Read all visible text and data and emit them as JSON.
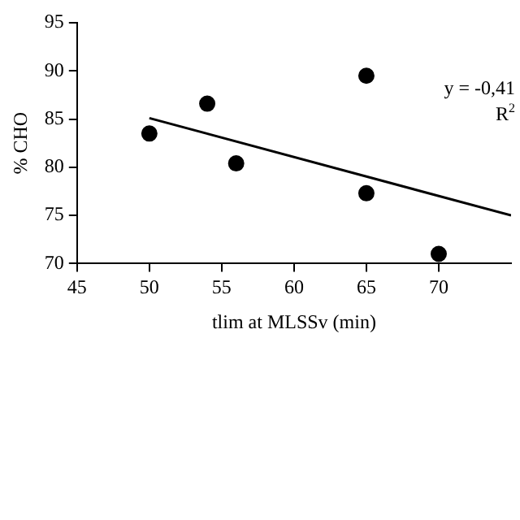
{
  "chart_data": {
    "type": "scatter",
    "xlabel": "tlim at MLSSv (min)",
    "ylabel": "% CHO",
    "xlim": [
      45,
      75
    ],
    "xticks": [
      45,
      50,
      55,
      60,
      65,
      70
    ],
    "ylim": [
      70,
      95
    ],
    "yticks": [
      70,
      75,
      80,
      85,
      90,
      95
    ],
    "grid": false,
    "legend": false,
    "marker": "circle",
    "annotations": [
      "y = -0,41",
      "R$^{2}$"
    ],
    "series": [
      {
        "type": "scatter",
        "color": "#000000",
        "x": [
          50,
          54,
          56,
          65,
          65,
          70
        ],
        "values": [
          83.5,
          86.6,
          80.4,
          89.5,
          77.3,
          71
        ]
      },
      {
        "type": "line",
        "color": "#000000",
        "marker": "none",
        "x": [
          50,
          75
        ],
        "values": [
          85.1,
          75.0
        ]
      }
    ]
  }
}
